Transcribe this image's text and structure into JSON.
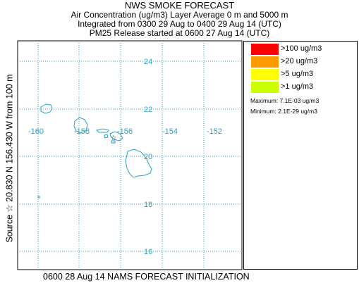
{
  "header": {
    "title": "NWS SMOKE FORECAST",
    "line1": "Air Concentration (ug/m3) Layer Average    0 m and  5000 m",
    "line2": "Integrated from 0300 29 Aug to 0400 29 Aug 14 (UTC)",
    "line3": "PM25 Release started at 0600 27 Aug 14 (UTC)"
  },
  "side_label": "Source ☆ 20.830 N 156.430 W     from 100 m",
  "bottom_label": "0600 28 Aug 14 NAMS FORECAST INITIALIZATION",
  "map": {
    "latitudes": [
      "24",
      "22",
      "20",
      "18",
      "16"
    ],
    "longitudes": [
      "-160",
      "-158",
      "-156",
      "-154",
      "-152"
    ],
    "gridline_color": "#2aa0c8",
    "coastline_color": "#2aa0c8",
    "source_marker": "star-icon"
  },
  "legend": {
    "items": [
      {
        "label": ">100 ug/m3",
        "color": "#ff0000"
      },
      {
        "label": ">20 ug/m3",
        "color": "#ff9900"
      },
      {
        "label": ">5 ug/m3",
        "color": "#ffff00"
      },
      {
        "label": ">1 ug/m3",
        "color": "#ccff00"
      }
    ],
    "maximum": "Maximum: 7.1E-03 ug/m3",
    "minimum": "Minimum: 2.1E-29 ug/m3"
  }
}
